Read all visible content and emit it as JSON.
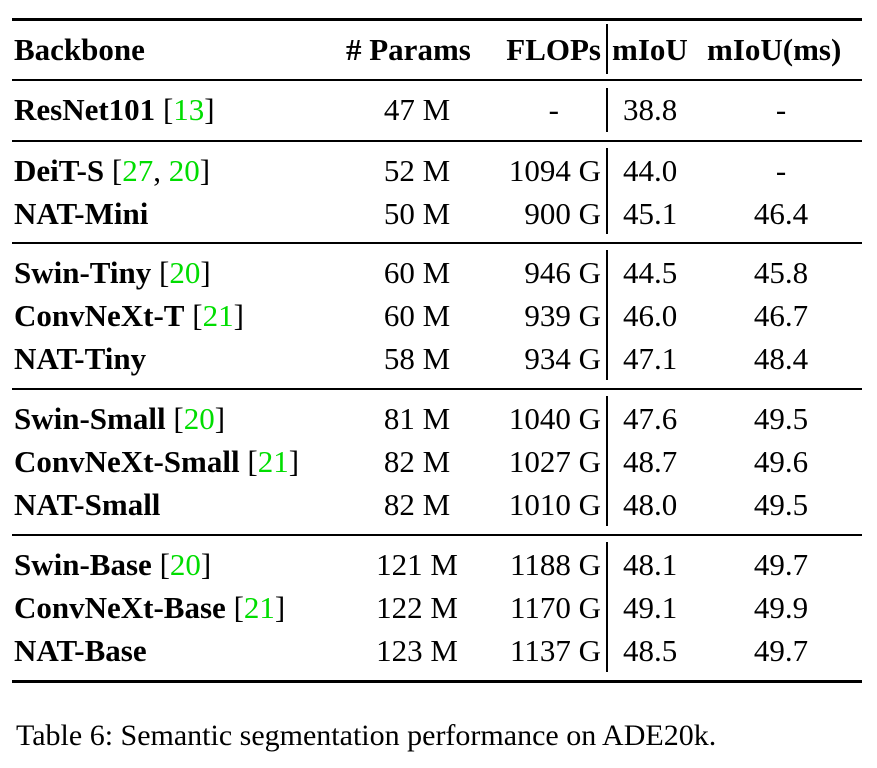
{
  "header": {
    "backbone": "Backbone",
    "params": "# Params",
    "flops": "FLOPs",
    "miou": "mIoU",
    "miou_ms": "mIoU(ms)"
  },
  "groups": [
    [
      {
        "name": "ResNet101",
        "cites": [
          "13"
        ],
        "params": "47 M",
        "flops": "-",
        "miou": "38.8",
        "miou_ms": "-"
      }
    ],
    [
      {
        "name": "DeiT-S",
        "cites": [
          "27",
          "20"
        ],
        "params": "52 M",
        "flops": "1094 G",
        "miou": "44.0",
        "miou_ms": "-"
      },
      {
        "name": "NAT-Mini",
        "cites": [],
        "params": "50 M",
        "flops": "900 G",
        "miou": "45.1",
        "miou_ms": "46.4"
      }
    ],
    [
      {
        "name": "Swin-Tiny",
        "cites": [
          "20"
        ],
        "params": "60 M",
        "flops": "946 G",
        "miou": "44.5",
        "miou_ms": "45.8"
      },
      {
        "name": "ConvNeXt-T",
        "cites": [
          "21"
        ],
        "params": "60 M",
        "flops": "939 G",
        "miou": "46.0",
        "miou_ms": "46.7"
      },
      {
        "name": "NAT-Tiny",
        "cites": [],
        "params": "58 M",
        "flops": "934 G",
        "miou": "47.1",
        "miou_ms": "48.4"
      }
    ],
    [
      {
        "name": "Swin-Small",
        "cites": [
          "20"
        ],
        "params": "81 M",
        "flops": "1040 G",
        "miou": "47.6",
        "miou_ms": "49.5"
      },
      {
        "name": "ConvNeXt-Small",
        "cites": [
          "21"
        ],
        "params": "82 M",
        "flops": "1027 G",
        "miou": "48.7",
        "miou_ms": "49.6"
      },
      {
        "name": "NAT-Small",
        "cites": [],
        "params": "82 M",
        "flops": "1010 G",
        "miou": "48.0",
        "miou_ms": "49.5"
      }
    ],
    [
      {
        "name": "Swin-Base",
        "cites": [
          "20"
        ],
        "params": "121 M",
        "flops": "1188 G",
        "miou": "48.1",
        "miou_ms": "49.7"
      },
      {
        "name": "ConvNeXt-Base",
        "cites": [
          "21"
        ],
        "params": "122 M",
        "flops": "1170 G",
        "miou": "49.1",
        "miou_ms": "49.9"
      },
      {
        "name": "NAT-Base",
        "cites": [],
        "params": "123 M",
        "flops": "1137 G",
        "miou": "48.5",
        "miou_ms": "49.7"
      }
    ]
  ],
  "caption": "Table 6: Semantic segmentation performance on ADE20k.",
  "colors": {
    "cite": "#00dd00"
  }
}
